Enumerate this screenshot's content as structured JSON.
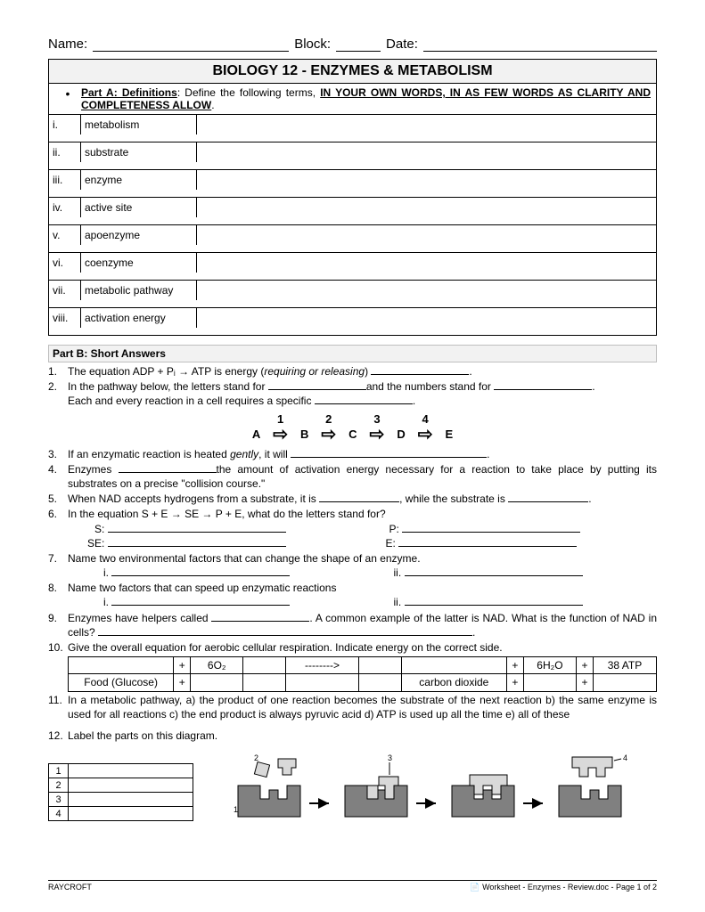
{
  "header": {
    "name_label": "Name:",
    "block_label": "Block:",
    "date_label": "Date:"
  },
  "title": "BIOLOGY 12 - ENZYMES & METABOLISM",
  "partA": {
    "instr_prefix": "Part A: Definitions",
    "instr_mid": ":  Define the following terms, ",
    "instr_bold": "IN YOUR OWN WORDS, IN AS FEW WORDS AS CLARITY AND COMPLETENESS ALLOW",
    "rows": [
      {
        "n": "i.",
        "t": "metabolism"
      },
      {
        "n": "ii.",
        "t": "substrate"
      },
      {
        "n": "iii.",
        "t": "enzyme"
      },
      {
        "n": "iv.",
        "t": "active site"
      },
      {
        "n": "v.",
        "t": "apoenzyme"
      },
      {
        "n": "vi.",
        "t": "coenzyme"
      },
      {
        "n": "vii.",
        "t": "metabolic pathway"
      },
      {
        "n": "viii.",
        "t": "activation energy"
      }
    ]
  },
  "partB": {
    "header": "Part B:  Short Answers",
    "q1": "The equation ADP + Pᵢ → ATP is energy (",
    "q1_i": "requiring or releasing",
    "q1_end": ") ",
    "q2a": "In the pathway below, the letters stand for ",
    "q2b": "and the numbers stand for ",
    "q2c": "Each and every reaction in a cell requires a specific ",
    "pathway_nums": [
      "1",
      "2",
      "3",
      "4"
    ],
    "pathway_letters": [
      "A",
      "B",
      "C",
      "D",
      "E"
    ],
    "q3": "If an enzymatic reaction is heated ",
    "q3_i": "gently",
    "q3_end": ", it will ",
    "q4a": "Enzymes ",
    "q4b": "the amount of activation energy necessary for a reaction to take place by putting its substrates on a precise \"collision course.\"",
    "q5a": "When NAD accepts hydrogens from a substrate, it is ",
    "q5b": ", while the substrate is ",
    "q6": "In the equation S + E → SE → P + E, what do the letters stand for?",
    "q6_labels": [
      "S:",
      "P:",
      "SE:",
      "E:"
    ],
    "q7": "Name two environmental factors that can change the shape of an enzyme.",
    "q8": "Name two factors that can speed up enzymatic reactions",
    "sub_i": "i.",
    "sub_ii": "ii.",
    "q9a": "Enzymes have helpers called ",
    "q9b": ".  A common example of the latter is NAD.  What is the function of NAD in cells? ",
    "q10": "Give the overall equation for aerobic cellular respiration.  Indicate energy on the correct side.",
    "resp": {
      "r1": [
        "",
        "+",
        "6O₂",
        "",
        "-------->",
        "",
        "",
        "+",
        "6H₂O",
        "+",
        "38 ATP"
      ],
      "r2": [
        "Food (Glucose)",
        "+",
        "",
        "",
        "",
        "",
        "carbon dioxide",
        "+",
        "",
        "+",
        ""
      ]
    },
    "q11": "In a metabolic pathway, a) the product of one reaction becomes the substrate of the next reaction  b) the same enzyme is used for all reactions  c) the end product is always pyruvic acid  d) ATP is used up all the time  e) all of these",
    "q12": "Label the parts on this diagram.",
    "diagram_labels": [
      "1",
      "2",
      "3",
      "4"
    ]
  },
  "footer": {
    "left": "RAYCROFT",
    "right": "Worksheet - Enzymes - Review.doc - Page 1 of 2"
  },
  "colors": {
    "title_bg": "#f2f2f2",
    "enzyme_fill": "#808080",
    "border": "#000000"
  }
}
